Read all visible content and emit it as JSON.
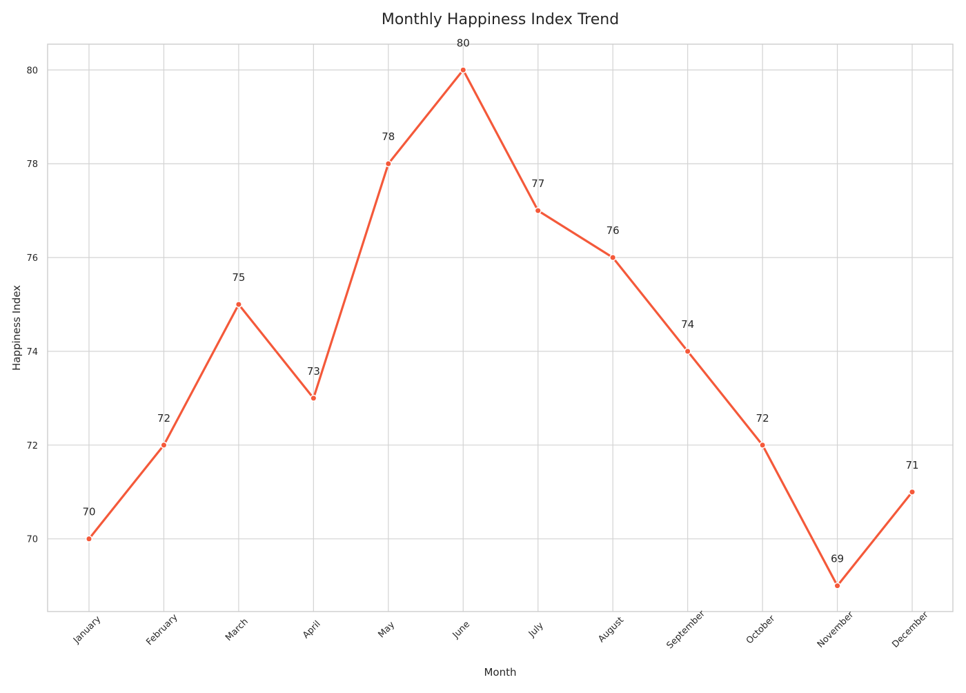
{
  "chart_data": {
    "type": "line",
    "title": "Monthly Happiness Index Trend",
    "xlabel": "Month",
    "ylabel": "Happiness Index",
    "categories": [
      "January",
      "February",
      "March",
      "April",
      "May",
      "June",
      "July",
      "August",
      "September",
      "October",
      "November",
      "December"
    ],
    "series": [
      {
        "values": [
          70,
          72,
          75,
          73,
          78,
          80,
          77,
          76,
          74,
          72,
          69,
          71
        ],
        "color": "#f4593a"
      }
    ],
    "yticks": [
      70,
      72,
      74,
      76,
      78,
      80
    ],
    "ylim": [
      68.45,
      80.55
    ],
    "grid": true,
    "legend": "none"
  }
}
